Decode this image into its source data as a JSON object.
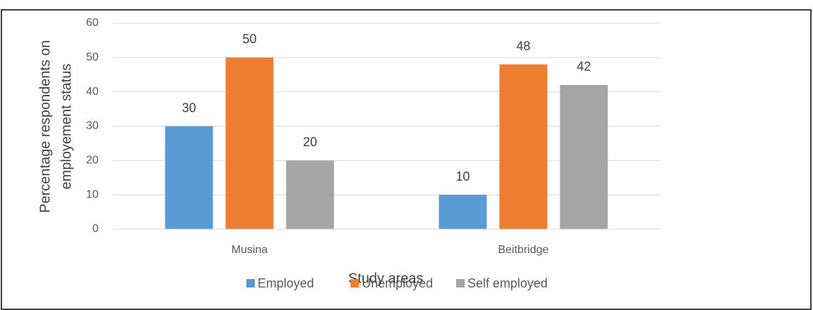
{
  "chart_data": {
    "type": "bar",
    "ylabel": [
      "Percentage respondents on",
      "employement status"
    ],
    "xlabel": "Study areas",
    "categories": [
      "Musina",
      "Beitbridge"
    ],
    "series": [
      {
        "name": "Employed",
        "color": "#5b9bd5",
        "values": [
          30,
          10
        ]
      },
      {
        "name": "Unemployed",
        "color": "#ed7d31",
        "values": [
          50,
          48
        ]
      },
      {
        "name": "Self employed",
        "color": "#a5a5a5",
        "values": [
          20,
          42
        ]
      }
    ],
    "ylim": [
      0,
      60
    ],
    "yticks": [
      0,
      10,
      20,
      30,
      40,
      50,
      60
    ],
    "grid": true,
    "legend": "bottom"
  }
}
